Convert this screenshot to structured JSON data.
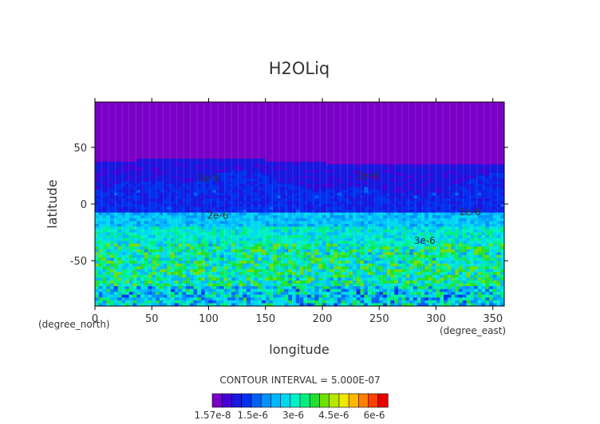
{
  "chart_data": {
    "type": "heatmap",
    "title": "H2OLiq",
    "xlabel": "longitude",
    "ylabel": "latitude",
    "x_unit": "(degree_east)",
    "y_unit": "(degree_north)",
    "xlim": [
      0,
      360
    ],
    "ylim": [
      -90,
      90
    ],
    "x_ticks": [
      "0",
      "50",
      "100",
      "150",
      "200",
      "250",
      "300",
      "350"
    ],
    "y_ticks": [
      "50",
      "0",
      "-50"
    ],
    "contour_labels": [
      {
        "text": "1e-6",
        "x": 100,
        "y": 20
      },
      {
        "text": "1e-6",
        "x": 240,
        "y": 22
      },
      {
        "text": "2e-6",
        "x": 108,
        "y": -13
      },
      {
        "text": "2e-6",
        "x": 330,
        "y": -10
      },
      {
        "text": "3e-6",
        "x": 290,
        "y": -35
      }
    ],
    "contour_interval": "CONTOUR INTERVAL = 5.000E-07",
    "colorbar": {
      "colors": [
        "#7a00c8",
        "#4400d8",
        "#1818e0",
        "#0030f0",
        "#0060f8",
        "#0090ff",
        "#00b8ff",
        "#00d8f0",
        "#00f0c8",
        "#00f080",
        "#20e030",
        "#70e000",
        "#b8e800",
        "#f0e800",
        "#ffb800",
        "#ff8000",
        "#ff4000",
        "#e80000"
      ],
      "tick_labels": [
        "1.57e-8",
        "1.5e-6",
        "3e-6",
        "4.5e-6",
        "6e-6"
      ],
      "tick_values": [
        1.57e-08,
        1.5e-06,
        3e-06,
        4.5e-06,
        6e-06
      ],
      "max": 6.5e-06
    }
  }
}
